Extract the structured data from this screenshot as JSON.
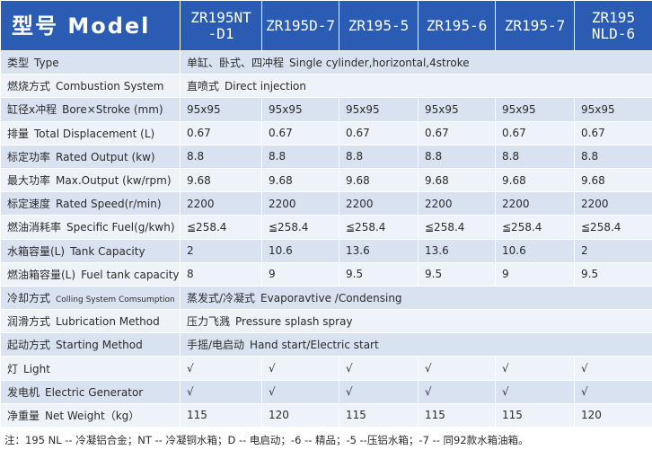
{
  "header": {
    "model_label": "型号 Model",
    "models": [
      "ZR195NT\n-D1",
      "ZR195D-7",
      "ZR195-5",
      "ZR195-6",
      "ZR195-7",
      "ZR195\nNLD-6"
    ]
  },
  "rows": [
    {
      "cn": "类型",
      "en": "Type",
      "span": {
        "cn": "单缸、卧式、四冲程",
        "en": "Single cylinder,horizontal,4stroke"
      }
    },
    {
      "cn": "燃烧方式",
      "en": "Combustion System",
      "span": {
        "cn": "直喷式",
        "en": "Direct injection"
      }
    },
    {
      "cn": "缸径x冲程",
      "en": "Bore×Stroke (mm)",
      "values": [
        "95x95",
        "95x95",
        "95x95",
        "95x95",
        "95x95",
        "95x95"
      ]
    },
    {
      "cn": "排量",
      "en": "Total Displacement (L)",
      "values": [
        "0.67",
        "0.67",
        "0.67",
        "0.67",
        "0.67",
        "0.67"
      ]
    },
    {
      "cn": "标定功率",
      "en": "Rated Output (kw)",
      "values": [
        "8.8",
        "8.8",
        "8.8",
        "8.8",
        "8.8",
        "8.8"
      ]
    },
    {
      "cn": "最大功率",
      "en": "Max.Output (kw/rpm)",
      "values": [
        "9.68",
        "9.68",
        "9.68",
        "9.68",
        "9.68",
        "9.68"
      ]
    },
    {
      "cn": "标定速度",
      "en": "Rated Speed(r/min)",
      "values": [
        "2200",
        "2200",
        "2200",
        "2200",
        "2200",
        "2200"
      ]
    },
    {
      "cn": "燃油消耗率",
      "en": "Specific Fuel(g/kwh)",
      "values": [
        "≦258.4",
        "≦258.4",
        "≦258.4",
        "≦258.4",
        "≦258.4",
        "≦258.4"
      ]
    },
    {
      "cn": "水箱容量(L)",
      "en": "Tank Capacity",
      "values": [
        "2",
        "10.6",
        "13.6",
        "13.6",
        "10.6",
        "2"
      ]
    },
    {
      "cn": "燃油箱容量(L)",
      "en": "Fuel tank capacity",
      "values": [
        "8",
        "9",
        "9.5",
        "9.5",
        "9",
        "9.5"
      ]
    },
    {
      "cn": "冷却方式",
      "en": "Colling System Comsumption",
      "small": true,
      "span": {
        "cn": "蒸发式/冷凝式",
        "en": "Evaporavtive /Condensing"
      }
    },
    {
      "cn": "润滑方式",
      "en": "Lubrication Method",
      "span": {
        "cn": "压力飞溅",
        "en": "Pressure splash spray"
      }
    },
    {
      "cn": "起动方式",
      "en": "Starting Method",
      "span": {
        "cn": "手摇/电启动",
        "en": "Hand start/Electric start"
      }
    },
    {
      "cn": "灯",
      "en": "Light",
      "values": [
        "√",
        "√",
        "√",
        "√",
        "√",
        "√"
      ]
    },
    {
      "cn": "发电机",
      "en": "Electric Generator",
      "values": [
        "√",
        "√",
        "√",
        "√",
        "√",
        "√"
      ]
    },
    {
      "cn": "净重量",
      "en": "Net Weight（kg）",
      "values": [
        "115",
        "120",
        "115",
        "115",
        "115",
        "120"
      ]
    }
  ],
  "note": "注：195  NL -- 冷凝铝合金；NT -- 冷凝铜水箱；D -- 电启动；-6 -- 精品；-5 --压铝水箱；-7 -- 同92款水箱油箱。"
}
